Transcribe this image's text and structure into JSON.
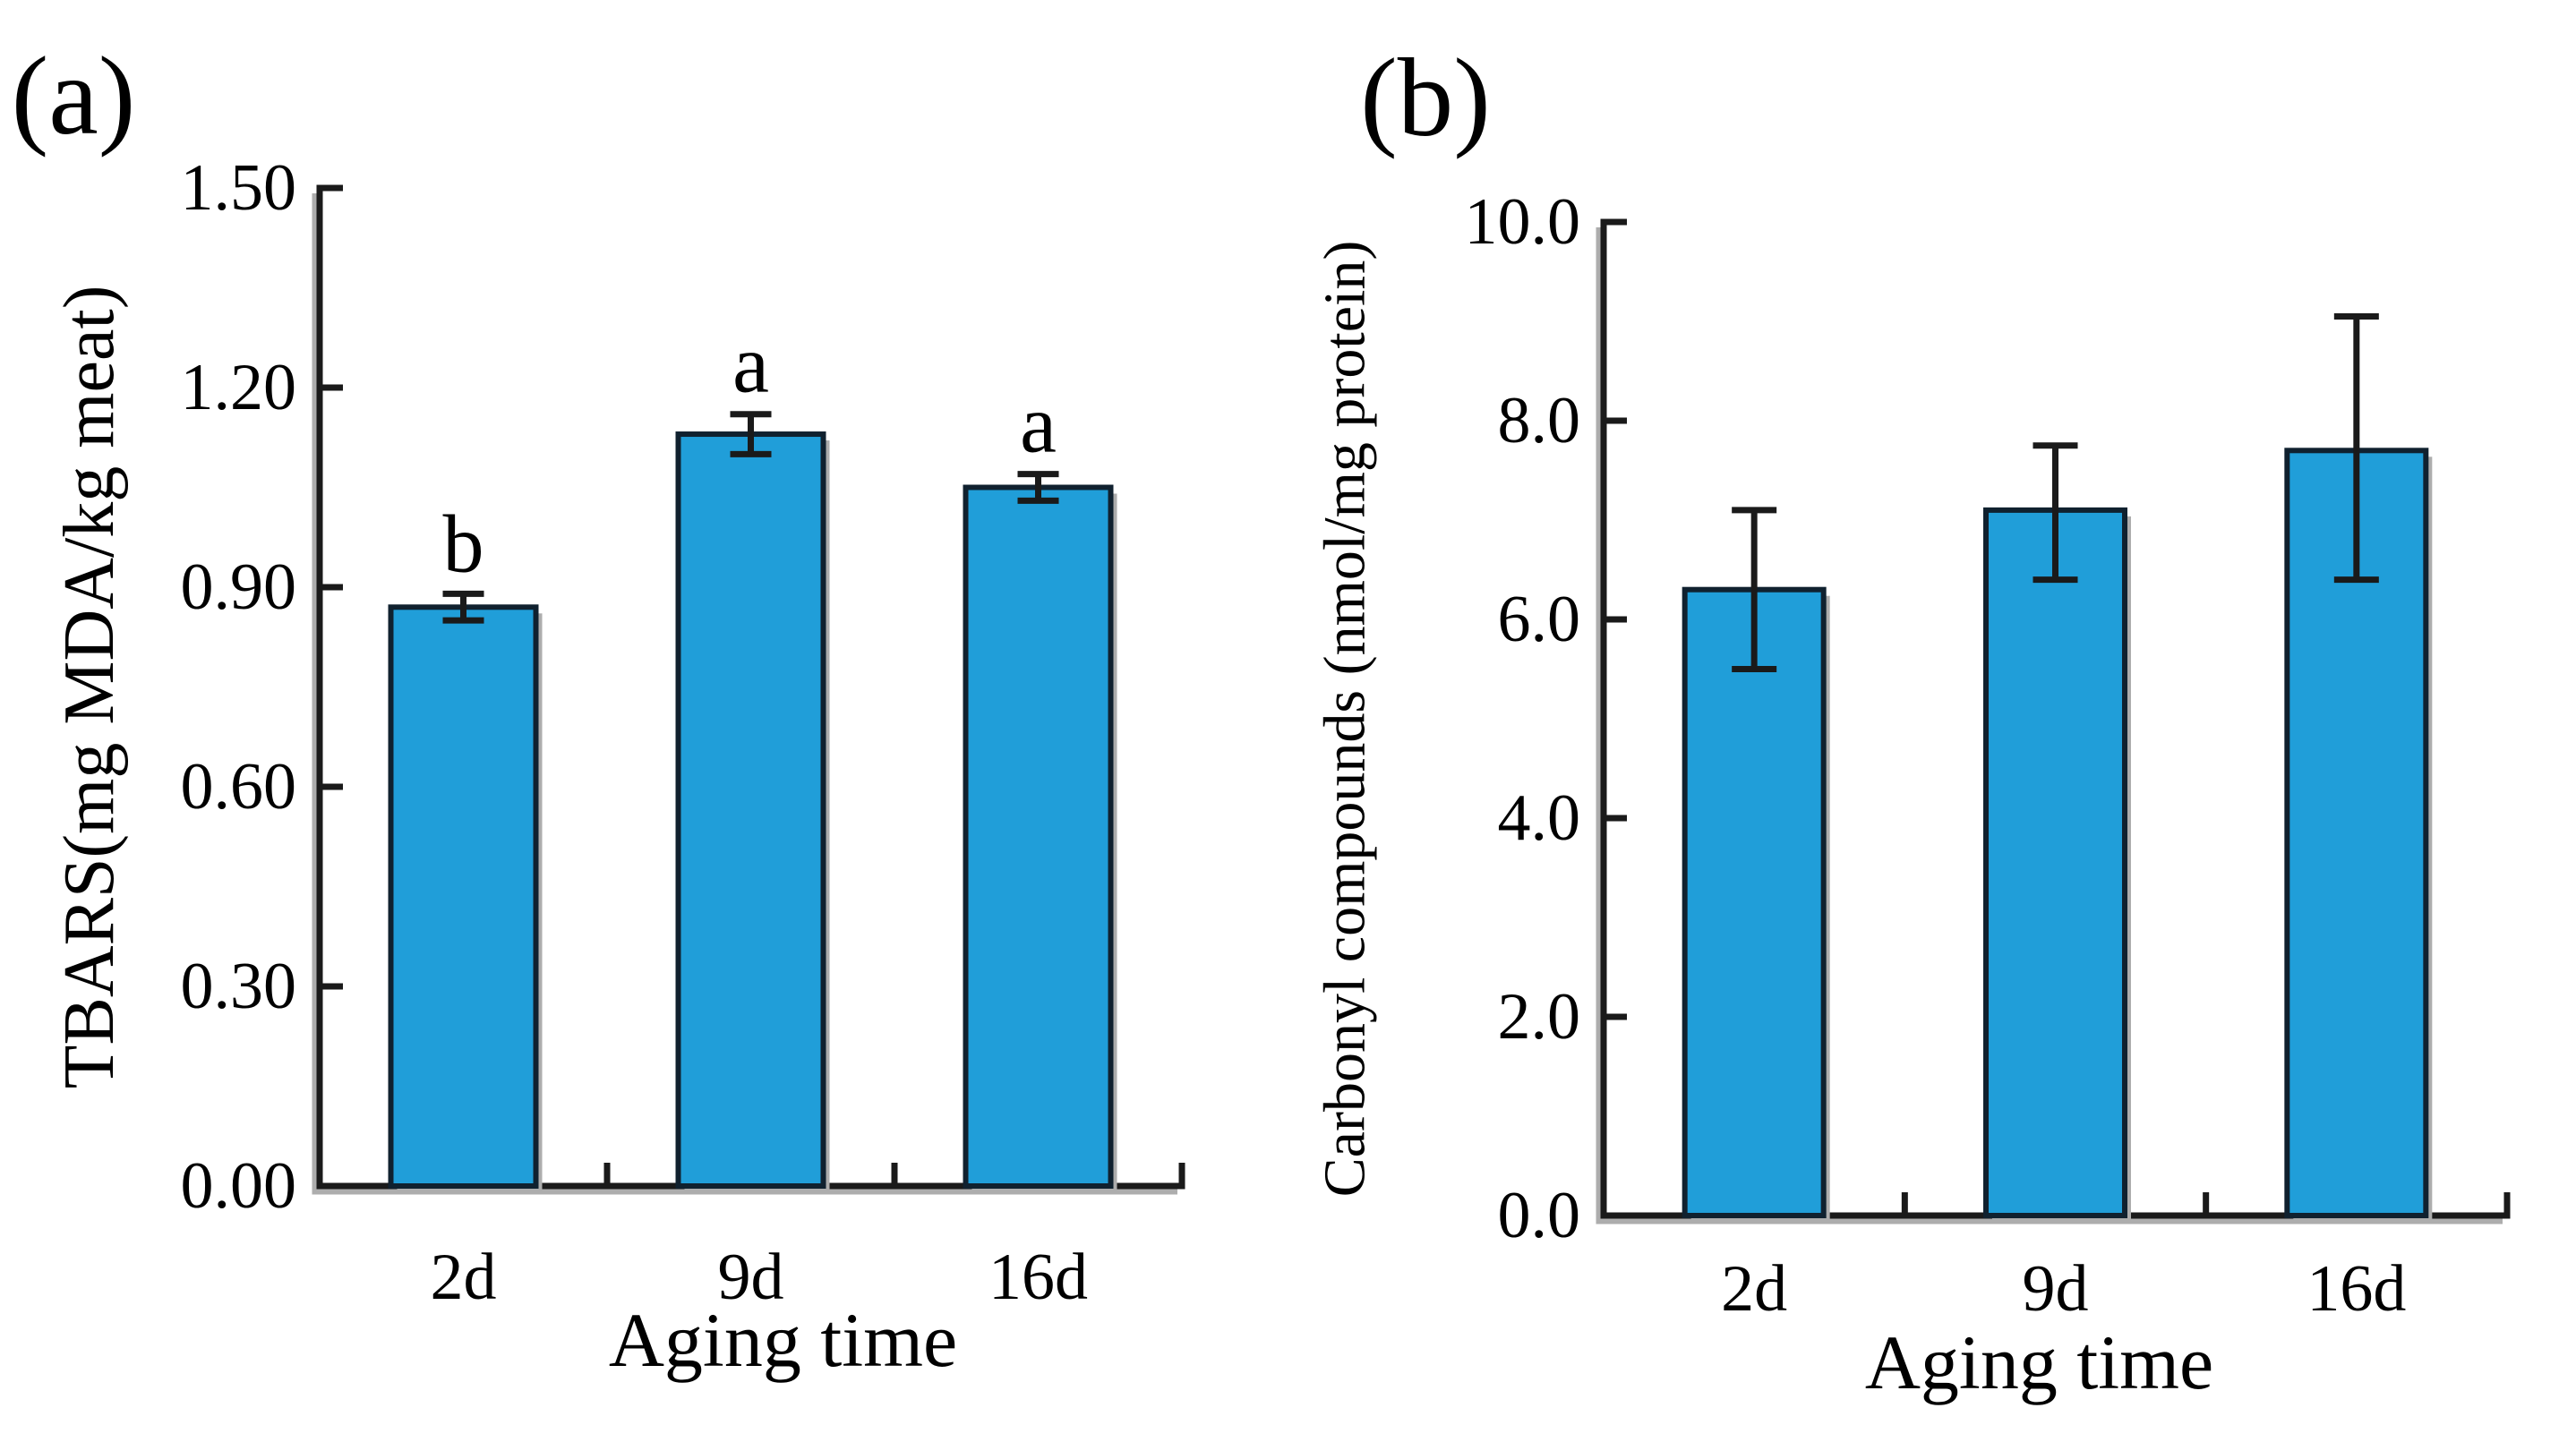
{
  "figure": {
    "description": "Two-panel bar chart figure",
    "background": "#FFFFFF"
  },
  "colors": {
    "bar_fill": "#209ED9",
    "bar_stroke": "#10212F",
    "axis": "#1A1A1A",
    "shadow": "#ADADAD",
    "text": "#000000"
  },
  "chart_data": [
    {
      "type": "bar",
      "panel_label": "(a)",
      "title": "",
      "xlabel": "Aging time",
      "ylabel": "TBARS(mg MDA/kg meat)",
      "categories": [
        "2d",
        "9d",
        "16d"
      ],
      "values": [
        0.87,
        1.13,
        1.05
      ],
      "error_up": [
        0.02,
        0.03,
        0.02
      ],
      "error_down": [
        0.02,
        0.03,
        0.02
      ],
      "sig_letters": [
        "b",
        "a",
        "a"
      ],
      "ylim": [
        0,
        1.5
      ],
      "ytick_step": 0.3,
      "ytick_labels": [
        "0.00",
        "0.30",
        "0.60",
        "0.90",
        "1.20",
        "1.50"
      ],
      "grid": false,
      "legend": "none",
      "error_bar_style": "black capped, symmetric",
      "bar_color": "#209ED9"
    },
    {
      "type": "bar",
      "panel_label": "(b)",
      "title": "",
      "xlabel": "Aging time",
      "ylabel": "Carbonyl compounds (nmol/mg protein)",
      "categories": [
        "2d",
        "9d",
        "16d"
      ],
      "values": [
        6.3,
        7.1,
        7.7
      ],
      "error_up": [
        0.8,
        0.65,
        1.35
      ],
      "error_down": [
        0.8,
        0.7,
        1.3
      ],
      "sig_letters": [
        "",
        "",
        ""
      ],
      "ylim": [
        0,
        10
      ],
      "ytick_step": 2,
      "ytick_labels": [
        "0.0",
        "2.0",
        "4.0",
        "6.0",
        "8.0",
        "10.0"
      ],
      "grid": false,
      "legend": "none",
      "error_bar_style": "black capped, asymmetric",
      "bar_color": "#209ED9"
    }
  ]
}
